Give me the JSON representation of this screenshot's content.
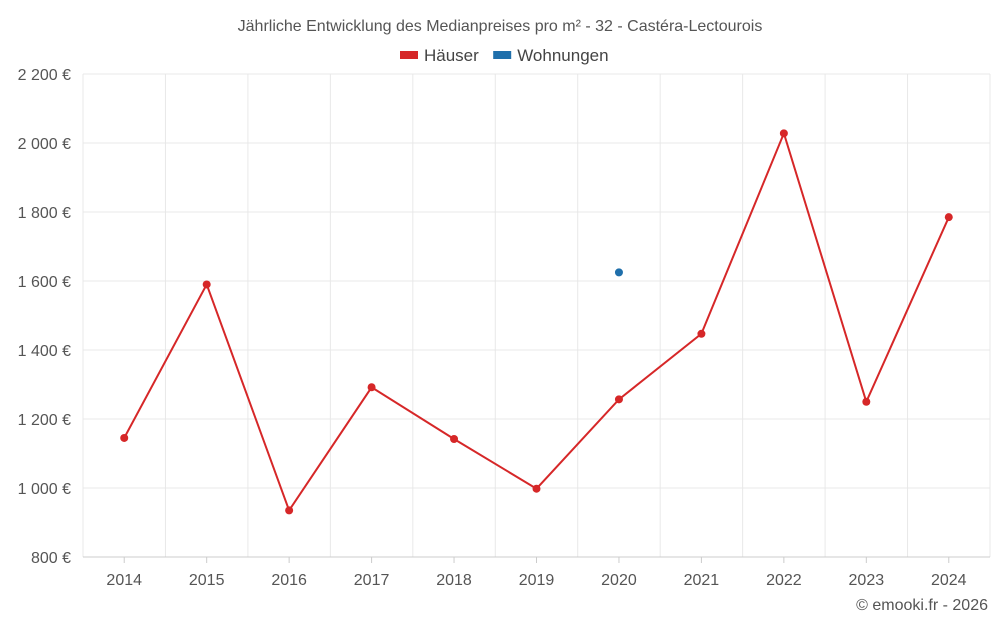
{
  "chart_data": {
    "type": "line",
    "title": "Jährliche Entwicklung des Medianpreises pro m² - 32 - Castéra-Lectourois",
    "categories": [
      "2014",
      "2015",
      "2016",
      "2017",
      "2018",
      "2019",
      "2020",
      "2021",
      "2022",
      "2023",
      "2024"
    ],
    "series": [
      {
        "name": "Häuser",
        "color": "#d62728",
        "values": [
          1145,
          1590,
          935,
          1292,
          1142,
          998,
          1257,
          1447,
          2028,
          1250,
          1785
        ]
      },
      {
        "name": "Wohnungen",
        "color": "#1f6fab",
        "values": [
          null,
          null,
          null,
          null,
          null,
          null,
          1625,
          null,
          null,
          null,
          null
        ]
      }
    ],
    "yticks": [
      "800 €",
      "1 000 €",
      "1 200 €",
      "1 400 €",
      "1 600 €",
      "1 800 €",
      "2 000 €",
      "2 200 €"
    ],
    "ytick_values": [
      800,
      1000,
      1200,
      1400,
      1600,
      1800,
      2000,
      2200
    ],
    "ylim": [
      800,
      2200
    ],
    "xlabel": "",
    "ylabel": "",
    "legend_position": "top-center",
    "grid": true
  },
  "credit": "© emooki.fr - 2026"
}
